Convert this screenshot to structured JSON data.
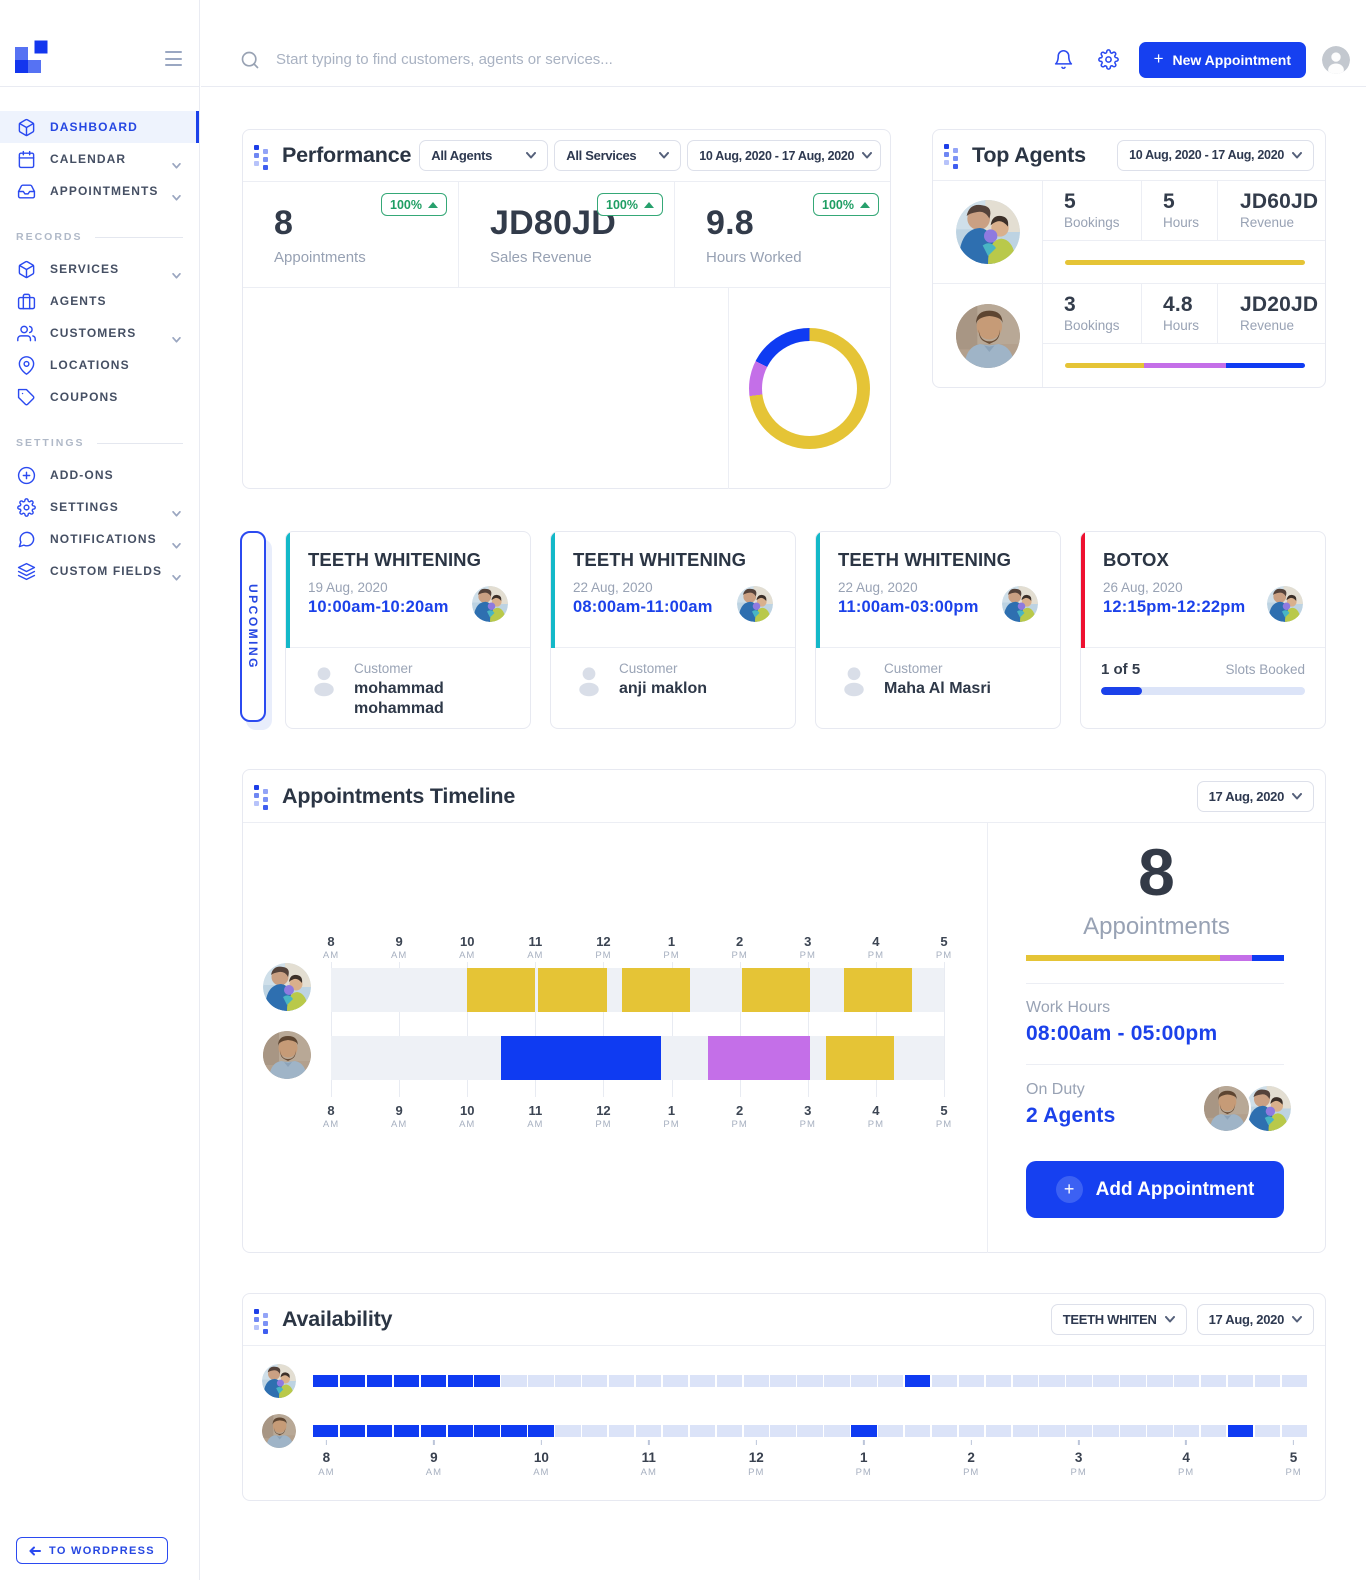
{
  "colors": {
    "blue": "#0f3bf2",
    "yellow": "#e5c436",
    "purple": "#c46fe8",
    "teal": "#14b8c8",
    "red": "#ee1130",
    "green": "#1f9e63"
  },
  "topbar": {
    "search_placeholder": "Start typing to find customers, agents or services...",
    "new_appointment_label": "New Appointment"
  },
  "sidebar": {
    "items": [
      {
        "label": "DASHBOARD",
        "active": true
      },
      {
        "label": "CALENDAR",
        "chevron": true
      },
      {
        "label": "APPOINTMENTS",
        "chevron": true
      },
      {
        "label": "SERVICES",
        "chevron": true
      },
      {
        "label": "AGENTS"
      },
      {
        "label": "CUSTOMERS",
        "chevron": true
      },
      {
        "label": "LOCATIONS"
      },
      {
        "label": "COUPONS"
      },
      {
        "label": "ADD-ONS"
      },
      {
        "label": "SETTINGS",
        "chevron": true
      },
      {
        "label": "NOTIFICATIONS",
        "chevron": true
      },
      {
        "label": "CUSTOM FIELDS",
        "chevron": true
      }
    ],
    "sections": {
      "records": "RECORDS",
      "settings": "SETTINGS"
    },
    "to_wordpress_label": "TO WORDPRESS"
  },
  "performance": {
    "title": "Performance",
    "filters": {
      "agents": "All Agents",
      "services": "All Services",
      "range": "10 Aug, 2020 - 17 Aug, 2020"
    },
    "stats": [
      {
        "value": "8",
        "label": "Appointments",
        "badge": "100%"
      },
      {
        "value": "JD80JD",
        "label": "Sales Revenue",
        "badge": "100%"
      },
      {
        "value": "9.8",
        "label": "Hours Worked",
        "badge": "100%"
      }
    ],
    "donut": {
      "type": "pie",
      "segments": [
        {
          "color": "yellow",
          "pct": 73
        },
        {
          "color": "purple",
          "pct": 9.5
        },
        {
          "color": "blue",
          "pct": 17.5
        }
      ]
    }
  },
  "top_agents": {
    "title": "Top Agents",
    "range": "10 Aug, 2020 - 17 Aug, 2020",
    "labels": {
      "bookings": "Bookings",
      "hours": "Hours",
      "revenue": "Revenue"
    },
    "agents": [
      {
        "bookings": "5",
        "hours": "5",
        "revenue": "JD60JD",
        "bar": [
          {
            "color": "yellow",
            "pct": 100
          }
        ]
      },
      {
        "bookings": "3",
        "hours": "4.8",
        "revenue": "JD20JD",
        "bar": [
          {
            "color": "yellow",
            "pct": 33
          },
          {
            "color": "purple",
            "pct": 34
          },
          {
            "color": "blue",
            "pct": 33
          }
        ]
      }
    ]
  },
  "upcoming": {
    "tab_label": "UPCOMING",
    "cards": [
      {
        "service": "TEETH WHITENING",
        "accent": "teal",
        "date": "19 Aug, 2020",
        "time": "10:00am-10:20am",
        "customer_label": "Customer",
        "customer": "mohammad mohammad"
      },
      {
        "service": "TEETH WHITENING",
        "accent": "teal",
        "date": "22 Aug, 2020",
        "time": "08:00am-11:00am",
        "customer_label": "Customer",
        "customer": "anji maklon"
      },
      {
        "service": "TEETH WHITENING",
        "accent": "teal",
        "date": "22 Aug, 2020",
        "time": "11:00am-03:00pm",
        "customer_label": "Customer",
        "customer": "Maha Al Masri"
      },
      {
        "service": "BOTOX",
        "accent": "red",
        "date": "26 Aug, 2020",
        "time": "12:15pm-12:22pm",
        "slots_count": "1 of 5",
        "slots_label": "Slots Booked",
        "slots_pct": 20
      }
    ]
  },
  "timeline": {
    "title": "Appointments Timeline",
    "date": "17 Aug, 2020",
    "axis": {
      "start": 8,
      "end": 17,
      "labels": [
        {
          "hour": "8",
          "meridiem": "AM"
        },
        {
          "hour": "9",
          "meridiem": "AM"
        },
        {
          "hour": "10",
          "meridiem": "AM"
        },
        {
          "hour": "11",
          "meridiem": "AM"
        },
        {
          "hour": "12",
          "meridiem": "PM"
        },
        {
          "hour": "1",
          "meridiem": "PM"
        },
        {
          "hour": "2",
          "meridiem": "PM"
        },
        {
          "hour": "3",
          "meridiem": "PM"
        },
        {
          "hour": "4",
          "meridiem": "PM"
        },
        {
          "hour": "5",
          "meridiem": "PM"
        }
      ]
    },
    "rows": [
      {
        "agent": "female-agent",
        "bars": [
          {
            "start": 10.0,
            "end": 11.0,
            "color": "yellow"
          },
          {
            "start": 11.04,
            "end": 12.05,
            "color": "yellow"
          },
          {
            "start": 12.27,
            "end": 13.27,
            "color": "yellow"
          },
          {
            "start": 14.03,
            "end": 15.03,
            "color": "yellow"
          },
          {
            "start": 15.53,
            "end": 16.53,
            "color": "yellow"
          }
        ]
      },
      {
        "agent": "male-agent",
        "bars": [
          {
            "start": 10.5,
            "end": 12.85,
            "color": "blue"
          },
          {
            "start": 13.53,
            "end": 15.03,
            "color": "purple"
          },
          {
            "start": 15.27,
            "end": 16.27,
            "color": "yellow"
          }
        ]
      }
    ],
    "summary": {
      "count": "8",
      "count_label": "Appointments",
      "bar": [
        {
          "color": "yellow",
          "pct": 75
        },
        {
          "color": "purple",
          "pct": 12.5
        },
        {
          "color": "blue",
          "pct": 12.5
        }
      ],
      "work_hours_label": "Work Hours",
      "work_hours": "08:00am - 05:00pm",
      "on_duty_label": "On Duty",
      "on_duty": "2 Agents",
      "add_button_label": "Add Appointment"
    }
  },
  "availability": {
    "title": "Availability",
    "service_filter": "TEETH WHITEN",
    "date": "17 Aug, 2020",
    "slot_count": 37,
    "rows": [
      {
        "agent": "female-agent",
        "active_slots": [
          0,
          1,
          2,
          3,
          4,
          5,
          6,
          22
        ]
      },
      {
        "agent": "male-agent",
        "active_slots": [
          0,
          1,
          2,
          3,
          4,
          5,
          6,
          7,
          8,
          20,
          34
        ]
      }
    ],
    "axis_labels": [
      {
        "hour": "8",
        "meridiem": "AM"
      },
      {
        "hour": "9",
        "meridiem": "AM"
      },
      {
        "hour": "10",
        "meridiem": "AM"
      },
      {
        "hour": "11",
        "meridiem": "AM"
      },
      {
        "hour": "12",
        "meridiem": "PM"
      },
      {
        "hour": "1",
        "meridiem": "PM"
      },
      {
        "hour": "2",
        "meridiem": "PM"
      },
      {
        "hour": "3",
        "meridiem": "PM"
      },
      {
        "hour": "4",
        "meridiem": "PM"
      },
      {
        "hour": "5",
        "meridiem": "PM"
      }
    ]
  }
}
